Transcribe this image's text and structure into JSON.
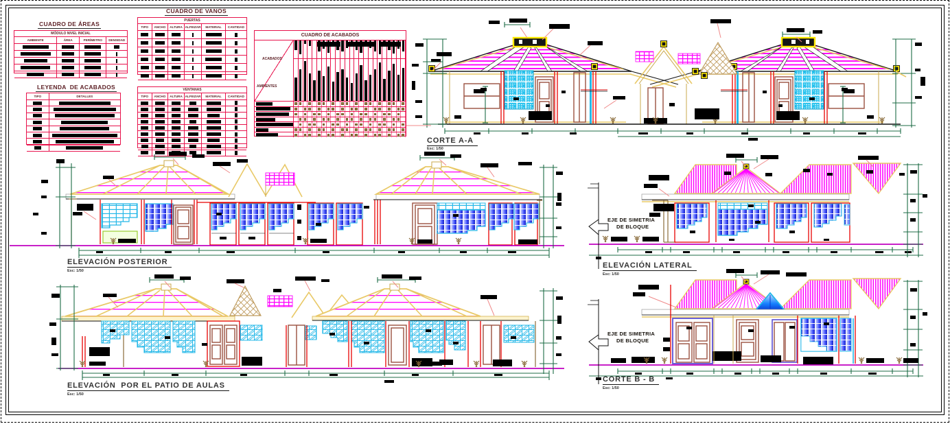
{
  "colors": {
    "accent_red": "#e8124c",
    "magenta": "#ff00ff",
    "cyan": "#29c3ee",
    "window_blue": "#2a3bff",
    "roof_tan": "#e9c967",
    "door_brown": "#9a4f3f",
    "dim_green": "#1c6b45",
    "ground_purple": "#c000c0",
    "marker_yellow": "#ffe800",
    "hatch_brown": "#bf9c5e"
  },
  "tables": {
    "areas": {
      "title": "CUADRO DE ÁREAS",
      "band": "MÓDULO NIVEL INICIAL",
      "headers": [
        "AMBIENTE",
        "ÁREA",
        "PERÍMETRO",
        "DENSIDAD"
      ]
    },
    "leyenda": {
      "title": "LEYENDA  DE ACABADOS",
      "headers": [
        "TIPO",
        "DETALLES"
      ]
    },
    "vanos": {
      "title": "CUADRO DE VANOS",
      "bands": [
        "PUERTAS",
        "VENTANAS"
      ],
      "headers": [
        "TIPO",
        "ANCHO",
        "ALTURA",
        "ALFEIZAR",
        "MATERIAL",
        "CANTIDAD"
      ]
    },
    "acabados": {
      "title": "CUADRO DE ACABADOS",
      "col_axis": "ACABADOS",
      "row_axis": "AMBIENTES"
    }
  },
  "views": {
    "corte_a": {
      "label": "CORTE A-A",
      "scale": "Esc: 1/50"
    },
    "posterior": {
      "label": "ELEVACIÓN POSTERIOR",
      "scale": "Esc: 1/50"
    },
    "patio": {
      "label": "ELEVACIÓN  POR EL PATIO DE AULAS",
      "scale": "Esc: 1/50"
    },
    "lateral": {
      "label": "ELEVACIÓN LATERAL",
      "scale": "Esc: 1/50",
      "symmetry_note_line1": "EJE DE SIMETRIA",
      "symmetry_note_line2": "DE BLOQUE"
    },
    "corte_b": {
      "label": "CORTE B - B",
      "scale": "Esc: 1/50",
      "symmetry_note_line1": "EJE DE SIMETRIA",
      "symmetry_note_line2": "DE BLOQUE"
    }
  }
}
